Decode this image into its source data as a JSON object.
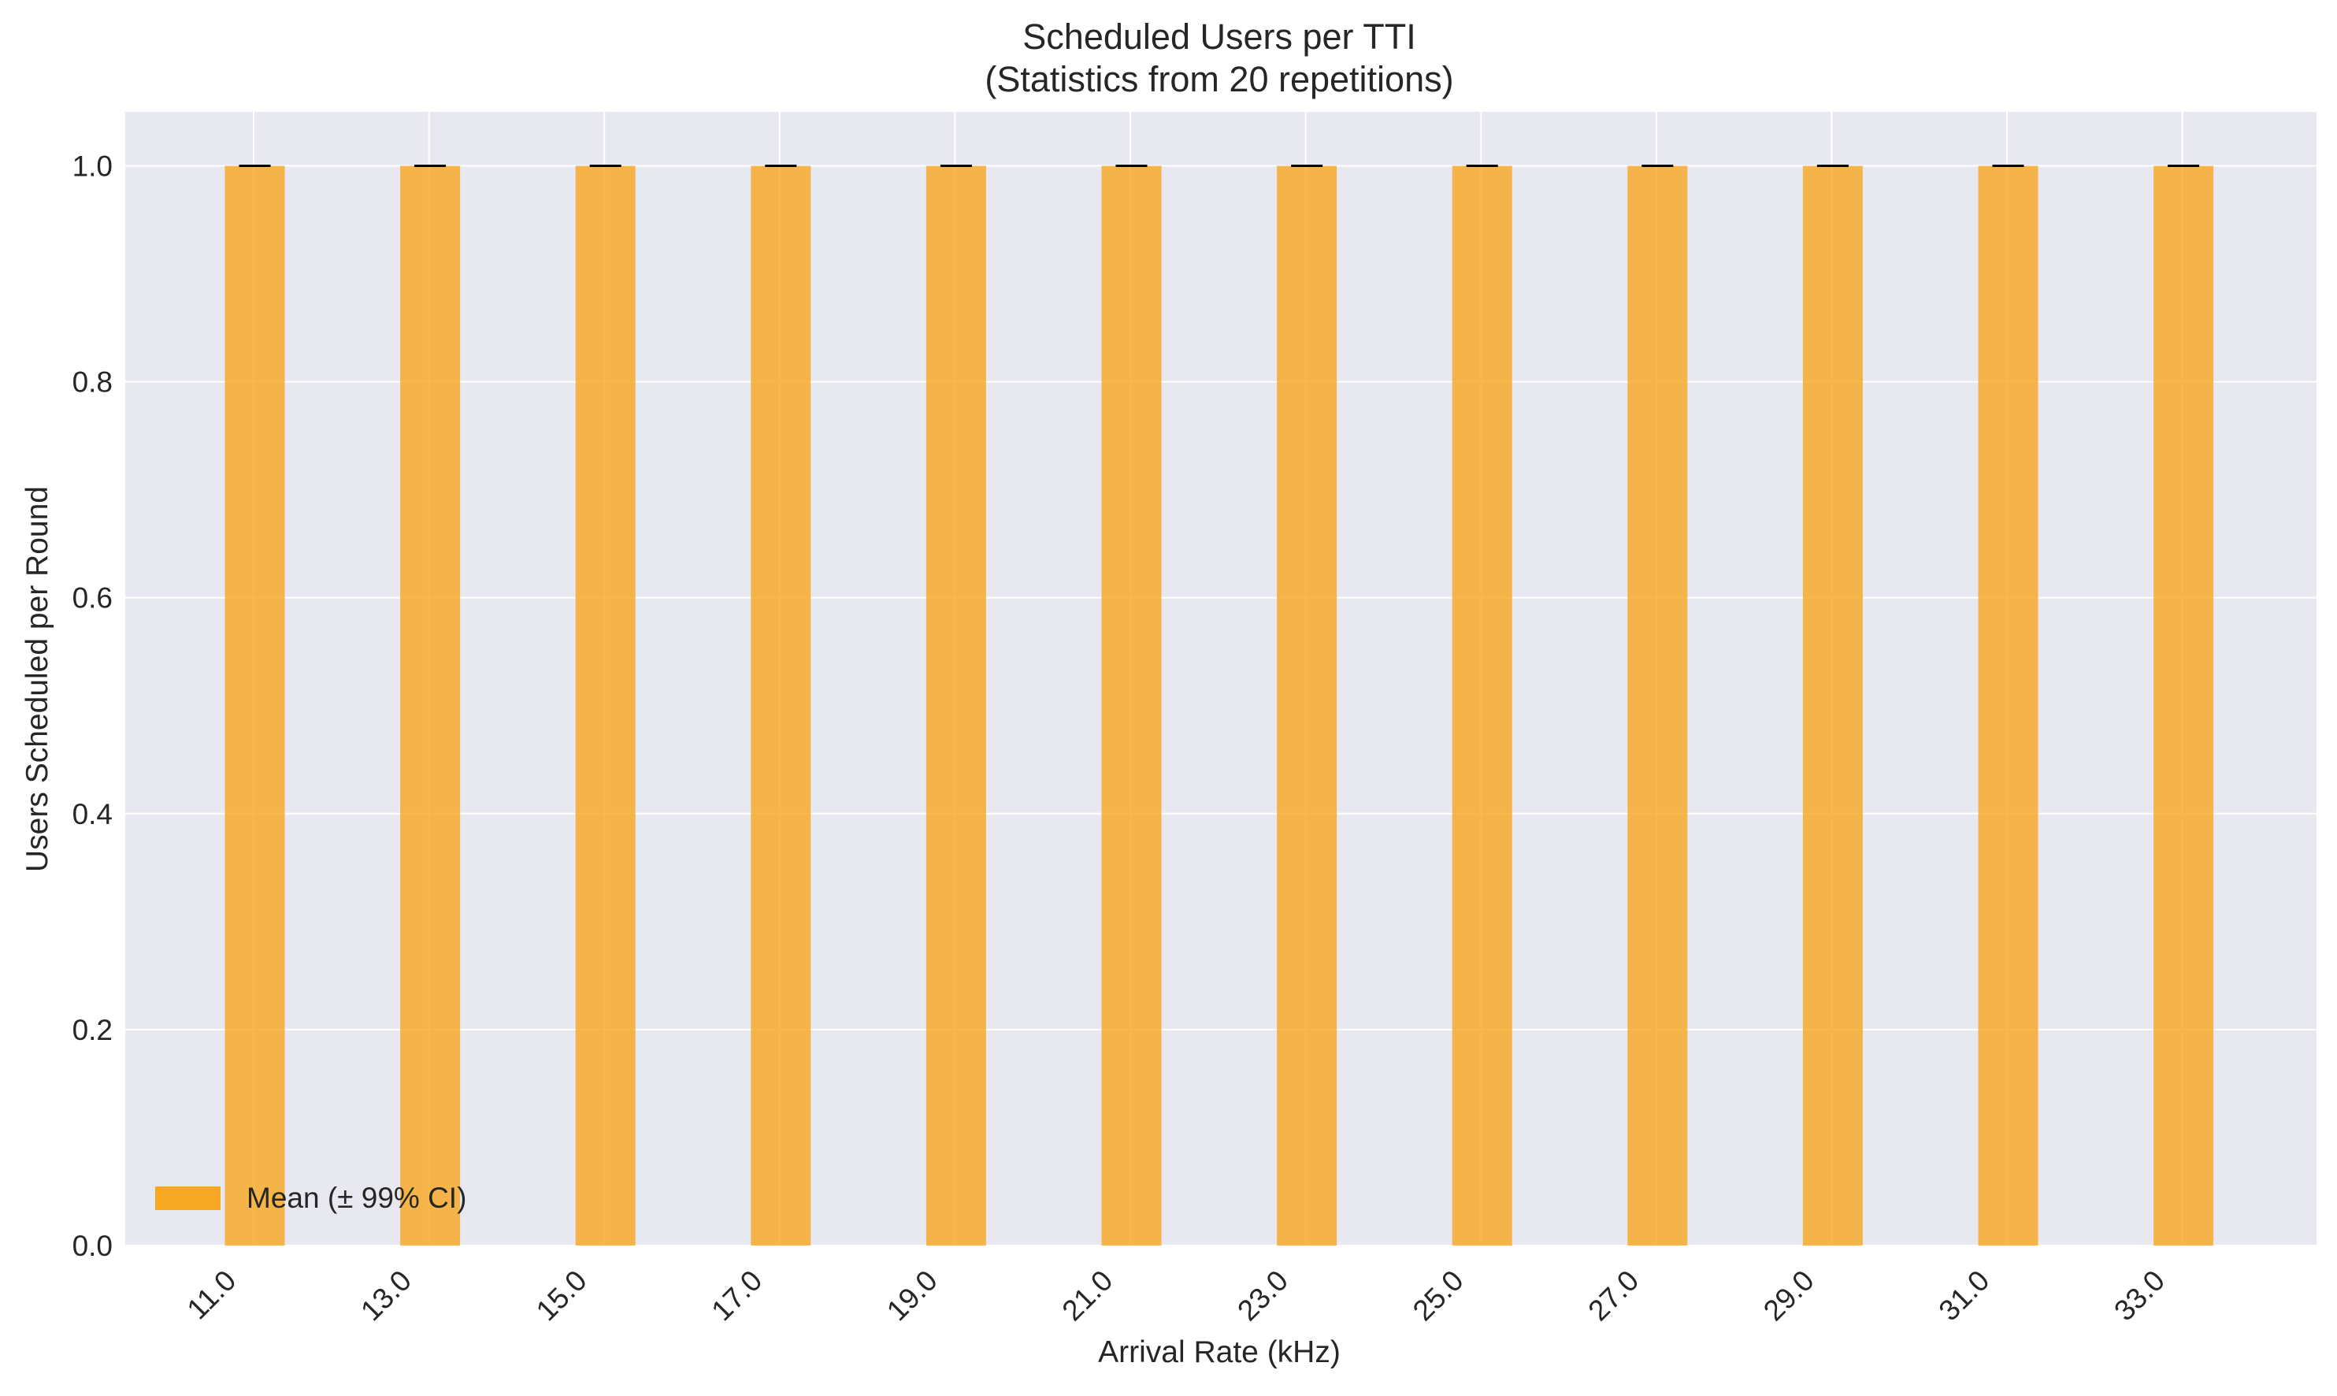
{
  "chart_data": {
    "type": "bar",
    "title": "Scheduled Users per TTI",
    "subtitle": "(Statistics from 20 repetitions)",
    "xlabel": "Arrival Rate (kHz)",
    "ylabel": "Users Scheduled per Round",
    "categories": [
      "11.0",
      "13.0",
      "15.0",
      "17.0",
      "19.0",
      "21.0",
      "23.0",
      "25.0",
      "27.0",
      "29.0",
      "31.0",
      "33.0"
    ],
    "series": [
      {
        "name": "Mean (± 99% CI)",
        "values": [
          1.0,
          1.0,
          1.0,
          1.0,
          1.0,
          1.0,
          1.0,
          1.0,
          1.0,
          1.0,
          1.0,
          1.0
        ],
        "ci_low": [
          1.0,
          1.0,
          1.0,
          1.0,
          1.0,
          1.0,
          1.0,
          1.0,
          1.0,
          1.0,
          1.0,
          1.0
        ],
        "ci_high": [
          1.0,
          1.0,
          1.0,
          1.0,
          1.0,
          1.0,
          1.0,
          1.0,
          1.0,
          1.0,
          1.0,
          1.0
        ],
        "color": "#f7a823"
      }
    ],
    "ylim": [
      0,
      1.05
    ],
    "yticks": [
      "0.0",
      "0.2",
      "0.4",
      "0.6",
      "0.8",
      "1.0"
    ],
    "grid": true,
    "legend_position": "lower-left",
    "colors": {
      "plot_background": "#e8e8f0",
      "grid": "#ffffff",
      "bar": "#f7a823",
      "errorbar": "#000000"
    }
  }
}
